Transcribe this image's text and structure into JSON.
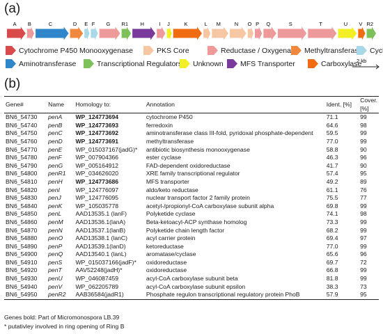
{
  "panel_a_label": "(a)",
  "panel_b_label": "(b)",
  "genes": [
    {
      "label": "A",
      "category": "Cytochrome P450 Monooxygenase",
      "len": 26
    },
    {
      "label": "B",
      "category": "Reductase / Oxygenase",
      "len": 10
    },
    {
      "label": "C",
      "category": "Aminotransferase",
      "len": 46
    },
    {
      "label": "D",
      "category": "Methyltransferase",
      "len": 18
    },
    {
      "label": "E",
      "category": "Cyclase",
      "len": 7
    },
    {
      "label": "F",
      "category": "Cyclase",
      "len": 10
    },
    {
      "label": "G",
      "category": "Reductase / Oxygenase",
      "len": 29
    },
    {
      "label": "R1",
      "category": "Transcriptional Regulators",
      "len": 13
    },
    {
      "label": "H",
      "category": "MFS Transporter",
      "len": 32
    },
    {
      "label": "I",
      "category": "Reductase / Oxygenase",
      "len": 12
    },
    {
      "label": "J",
      "category": "Unknown",
      "len": 7
    },
    {
      "label": "K",
      "category": "Carboxylase",
      "len": 40
    },
    {
      "label": "L",
      "category": "PKS Core",
      "len": 10
    },
    {
      "label": "M",
      "category": "PKS Core",
      "len": 23
    },
    {
      "label": "N",
      "category": "PKS Core",
      "len": 23
    },
    {
      "label": "O",
      "category": "PKS Core",
      "len": 8
    },
    {
      "label": "P",
      "category": "Reductase / Oxygenase",
      "len": 10
    },
    {
      "label": "Q",
      "category": "Reductase / Oxygenase",
      "len": 18
    },
    {
      "label": "S",
      "category": "Reductase / Oxygenase",
      "len": 40
    },
    {
      "label": "T",
      "category": "Reductase / Oxygenase",
      "len": 40
    },
    {
      "label": "U",
      "category": "Unknown",
      "len": 26
    },
    {
      "label": "V",
      "category": "Carboxylase",
      "len": 10
    },
    {
      "label": "R2",
      "category": "Transcriptional Regulators",
      "len": 13
    }
  ],
  "legend": [
    {
      "name": "Cytochrome P450 Monooxygenase",
      "color": "#d94a4a",
      "shape": "arrow",
      "label": "Cytochrome P450 Monooxygenase"
    },
    {
      "name": "PKS Core",
      "color": "#f7c6a3",
      "shape": "arrow",
      "label": "PKS Core"
    },
    {
      "name": "Reductase / Oxygenase",
      "color": "#ee9a9a",
      "shape": "arrow",
      "label": "Reductase / Oxygenase"
    },
    {
      "name": "Methyltransferase",
      "color": "#f0883d",
      "shape": "arrow",
      "label": "Methyltransferase"
    },
    {
      "name": "Cyclase",
      "color": "#a9d8e8",
      "shape": "arrow",
      "label": "Cyclase"
    },
    {
      "name": "Aminotransferase",
      "color": "#2f86c8",
      "shape": "arrow",
      "label": "Aminotransferase"
    },
    {
      "name": "Transcriptional Regulators",
      "color": "#7cc15a",
      "shape": "arrow",
      "label": "Transcriptional Regulators"
    },
    {
      "name": "Unknown",
      "color": "#f2ef26",
      "shape": "arrow",
      "label": "Unknown"
    },
    {
      "name": "MFS Transporter",
      "color": "#7a3a9c",
      "shape": "arrow",
      "label": "MFS Transporter"
    },
    {
      "name": "Carboxylase",
      "color": "#ef6c12",
      "shape": "arrow",
      "label": "Carboxylase"
    }
  ],
  "scale_bar_label": "2 kb",
  "table": {
    "headers": [
      "Gene#",
      "Name",
      "Homology to:",
      "Annotation",
      "Ident. [%]",
      "Cover. [%]"
    ],
    "rows": [
      {
        "gene": "BN6_54730",
        "name": "penA",
        "homology": "WP_124773694",
        "bold": true,
        "annotation": "cytochrome P450",
        "ident": "71.1",
        "cover": "99"
      },
      {
        "gene": "BN6_54740",
        "name": "penB",
        "homology": "WP_124773693",
        "bold": true,
        "annotation": "ferredoxin",
        "ident": "64.6",
        "cover": "98"
      },
      {
        "gene": "BN6_54750",
        "name": "penC",
        "homology": "WP_124773692",
        "bold": true,
        "annotation": "aminotransferase class III-fold, pyridoxal phosphate-dependent",
        "ident": "59.5",
        "cover": "99"
      },
      {
        "gene": "BN6_54760",
        "name": "penD",
        "homology": "WP_124773691",
        "bold": true,
        "annotation": "methyltransferase",
        "ident": "77.0",
        "cover": "99"
      },
      {
        "gene": "BN6_54770",
        "name": "penE",
        "homology": "WP_015037167(jadG)*",
        "bold": false,
        "annotation": "antibiotic biosynthesis monooxygenase",
        "ident": "58.8",
        "cover": "90"
      },
      {
        "gene": "BN6_54780",
        "name": "penF",
        "homology": "WP_007904366",
        "bold": false,
        "annotation": "ester cyclase",
        "ident": "46.3",
        "cover": "96"
      },
      {
        "gene": "BN6_54790",
        "name": "penG",
        "homology": "WP_005164912",
        "bold": false,
        "annotation": "FAD-dependent oxidoreductase",
        "ident": "41.7",
        "cover": "90"
      },
      {
        "gene": "BN6_54800",
        "name": "penR1",
        "homology": "WP_034626020",
        "bold": false,
        "annotation": "XRE family transcriptional regulator",
        "ident": "57.4",
        "cover": "95"
      },
      {
        "gene": "BN6_54810",
        "name": "penH",
        "homology": "WP_124773686",
        "bold": true,
        "annotation": "MFS transporter",
        "ident": "49.2",
        "cover": "89"
      },
      {
        "gene": "BN6_54820",
        "name": "penI",
        "homology": "WP_124776097",
        "bold": false,
        "annotation": "aldo/keto reductase",
        "ident": "61.1",
        "cover": "76"
      },
      {
        "gene": "BN6_54830",
        "name": "penJ",
        "homology": "WP_124776095",
        "bold": false,
        "annotation": "nuclear transport factor 2 family protein",
        "ident": "75.5",
        "cover": "77"
      },
      {
        "gene": "BN6_54840",
        "name": "penK",
        "homology": "WP_105035778",
        "bold": false,
        "annotation": "acetyl-/propionyl-CoA carboxylase subunit alpha",
        "ident": "69.8",
        "cover": "99"
      },
      {
        "gene": "BN6_54850",
        "name": "penL",
        "homology": "AAD13535.1 (lanF)",
        "bold": false,
        "annotation": "Polyketide cyclase",
        "ident": "74.1",
        "cover": "98"
      },
      {
        "gene": "BN6_54860",
        "name": "penM",
        "homology": "AAD13536.1(lanA)",
        "bold": false,
        "annotation": "Beta-ketoacyl-ACP synthase homolog",
        "ident": "73.3",
        "cover": "99"
      },
      {
        "gene": "BN6_54870",
        "name": "penN",
        "homology": "AAD13537.1(lanB)",
        "bold": false,
        "annotation": "Polyketide chain length factor",
        "ident": "68.2",
        "cover": "99"
      },
      {
        "gene": "BN6_54880",
        "name": "penO",
        "homology": "AAD13538.1 (lanC)",
        "bold": false,
        "annotation": "acyl carrier protein",
        "ident": "69.4",
        "cover": "97"
      },
      {
        "gene": "BN6_54890",
        "name": "penP",
        "homology": "AAD13539.1(lanD)",
        "bold": false,
        "annotation": "ketoreductase",
        "ident": "77.0",
        "cover": "99"
      },
      {
        "gene": "BN6_54900",
        "name": "penQ",
        "homology": "AAD13540.1 (lanL)",
        "bold": false,
        "annotation": "aromatase/cyclase",
        "ident": "65.6",
        "cover": "96"
      },
      {
        "gene": "BN6_54910",
        "name": "penS",
        "homology": "WP_015037166(jadF)*",
        "bold": false,
        "annotation": "oxidoreductase",
        "ident": "69.7",
        "cover": "72"
      },
      {
        "gene": "BN6_54920",
        "name": "penT",
        "homology": "AAV52248(jadH)*",
        "bold": false,
        "annotation": "oxidoreductase",
        "ident": "66.8",
        "cover": "99"
      },
      {
        "gene": "BN6_54930",
        "name": "penU",
        "homology": "WP_046087459",
        "bold": false,
        "annotation": "acyl-CoA carboxylase subunit beta",
        "ident": "81.8",
        "cover": "99"
      },
      {
        "gene": "BN6_54940",
        "name": "penV",
        "homology": "WP_062205789",
        "bold": false,
        "annotation": "acyl-CoA carboxylase subunit epsilon",
        "ident": "38.3",
        "cover": "73"
      },
      {
        "gene": "BN6_54950",
        "name": "penR2",
        "homology": "AAB36584(jadR1)",
        "bold": false,
        "annotation": "Phosphate regulon transcriptional regulatory protein PhoB",
        "ident": "57.9",
        "cover": "95"
      }
    ]
  },
  "footnotes": {
    "genes_bold": "Genes bold: Part of Micromonospora LB.39",
    "putative": "* putativley involved in ring opening of Ring B"
  }
}
